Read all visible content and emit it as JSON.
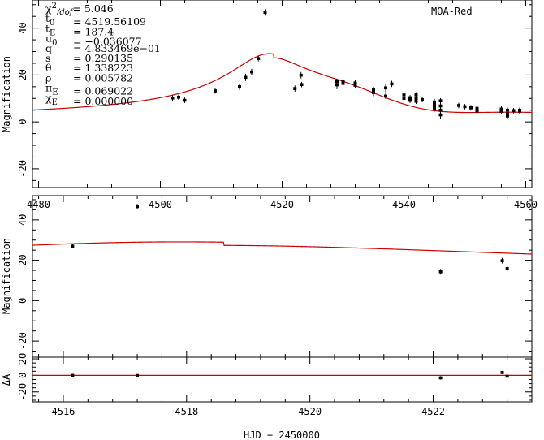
{
  "chart_data": [
    {
      "name": "full-light-curve",
      "type": "scatter",
      "xlim": [
        4479,
        4561
      ],
      "ylim": [
        -28,
        52
      ],
      "x_ticks": [
        4480,
        4500,
        4520,
        4540,
        4560
      ],
      "y_ticks": [
        -20,
        0,
        20,
        40
      ],
      "ylabel": "Magnification",
      "legend": "MOA-Red",
      "params": [
        {
          "label": "χ²/dof",
          "value": "5.046"
        },
        {
          "label": "t₀",
          "value": "4519.56109"
        },
        {
          "label": "t_E",
          "value": "187.4"
        },
        {
          "label": "u₀",
          "value": "−0.036077"
        },
        {
          "label": "q",
          "value": "4.833469e−01"
        },
        {
          "label": "s",
          "value": "0.290135"
        },
        {
          "label": "θ",
          "value": "1.338223"
        },
        {
          "label": "ρ",
          "value": "0.005782"
        },
        {
          "label": "π_E",
          "value": "0.069022"
        },
        {
          "label": "χ_E",
          "value": "0.000000"
        }
      ],
      "points": [
        [
          4502,
          10.2,
          0.8
        ],
        [
          4503,
          10.5,
          0.8
        ],
        [
          4504,
          9.2,
          0.8
        ],
        [
          4509,
          13.2,
          0.8
        ],
        [
          4513,
          15.0,
          1.0
        ],
        [
          4514,
          19.0,
          1.2
        ],
        [
          4515,
          21.3,
          1.0
        ],
        [
          4516.1,
          27.0,
          0.8
        ],
        [
          4517.2,
          46.7,
          1.0
        ],
        [
          4522.1,
          14.2,
          1.0
        ],
        [
          4523.1,
          19.9,
          1.0
        ],
        [
          4523.2,
          15.9,
          0.8
        ],
        [
          4529,
          15.8,
          1.5
        ],
        [
          4529,
          17.1,
          1.0
        ],
        [
          4530,
          16.4,
          1.0
        ],
        [
          4530,
          17.2,
          0.8
        ],
        [
          4532,
          15.6,
          1.0
        ],
        [
          4532,
          16.6,
          0.8
        ],
        [
          4535,
          12.5,
          1.2
        ],
        [
          4535,
          13.7,
          0.8
        ],
        [
          4537,
          14.5,
          1.5
        ],
        [
          4537,
          11.0,
          0.8
        ],
        [
          4538,
          16.2,
          1.0
        ],
        [
          4540,
          11.5,
          1.0
        ],
        [
          4540,
          10.0,
          0.8
        ],
        [
          4541,
          9.2,
          0.8
        ],
        [
          4541,
          10.3,
          0.8
        ],
        [
          4542,
          8.8,
          0.8
        ],
        [
          4542,
          10.0,
          1.0
        ],
        [
          4542,
          11.5,
          0.8
        ],
        [
          4543,
          9.5,
          0.8
        ],
        [
          4545,
          7.6,
          1.0
        ],
        [
          4545,
          8.5,
          1.0
        ],
        [
          4545,
          6.3,
          0.8
        ],
        [
          4545,
          5.5,
          0.8
        ],
        [
          4546,
          6.8,
          1.0
        ],
        [
          4546,
          5.0,
          1.0
        ],
        [
          4546,
          3.0,
          1.5
        ],
        [
          4546,
          9.0,
          0.8
        ],
        [
          4549,
          7.0,
          0.8
        ],
        [
          4550,
          6.5,
          0.8
        ],
        [
          4551,
          6.0,
          0.8
        ],
        [
          4552,
          5.8,
          0.8
        ],
        [
          4552,
          4.6,
          0.8
        ],
        [
          4556,
          5.5,
          0.8
        ],
        [
          4556,
          4.5,
          0.8
        ],
        [
          4557,
          5.0,
          0.8
        ],
        [
          4557,
          3.5,
          1.0
        ],
        [
          4557,
          2.5,
          1.0
        ],
        [
          4558,
          4.8,
          0.8
        ],
        [
          4559,
          5.0,
          0.8
        ],
        [
          4559,
          4.6,
          0.8
        ]
      ]
    },
    {
      "name": "zoom-light-curve",
      "type": "scatter",
      "xlim": [
        4515.5,
        4523.6
      ],
      "ylim": [
        -28,
        52
      ],
      "x_ticks": [
        4516,
        4518,
        4520,
        4522
      ],
      "y_ticks": [
        -20,
        0,
        20,
        40
      ],
      "ylabel": "Magnification",
      "points": [
        [
          4516.15,
          27.0,
          0.6
        ],
        [
          4517.2,
          46.6,
          0.9
        ],
        [
          4522.12,
          14.3,
          1.0
        ],
        [
          4523.12,
          19.8,
          1.0
        ],
        [
          4523.2,
          15.9,
          0.8
        ]
      ]
    },
    {
      "name": "residuals",
      "type": "scatter",
      "xlim": [
        4515.5,
        4523.6
      ],
      "ylim": [
        -32,
        22
      ],
      "x_ticks": [
        4516,
        4518,
        4520,
        4522
      ],
      "y_ticks": [
        20,
        0,
        -20
      ],
      "ylabel": "ΔA",
      "xlabel": "HJD − 2450000",
      "points": [
        [
          4516.15,
          0.0,
          0.6
        ],
        [
          4517.2,
          -0.2,
          0.9
        ],
        [
          4522.12,
          -3.0,
          1.0
        ],
        [
          4523.12,
          3.5,
          1.0
        ],
        [
          4523.2,
          -1.0,
          0.8
        ]
      ]
    }
  ]
}
